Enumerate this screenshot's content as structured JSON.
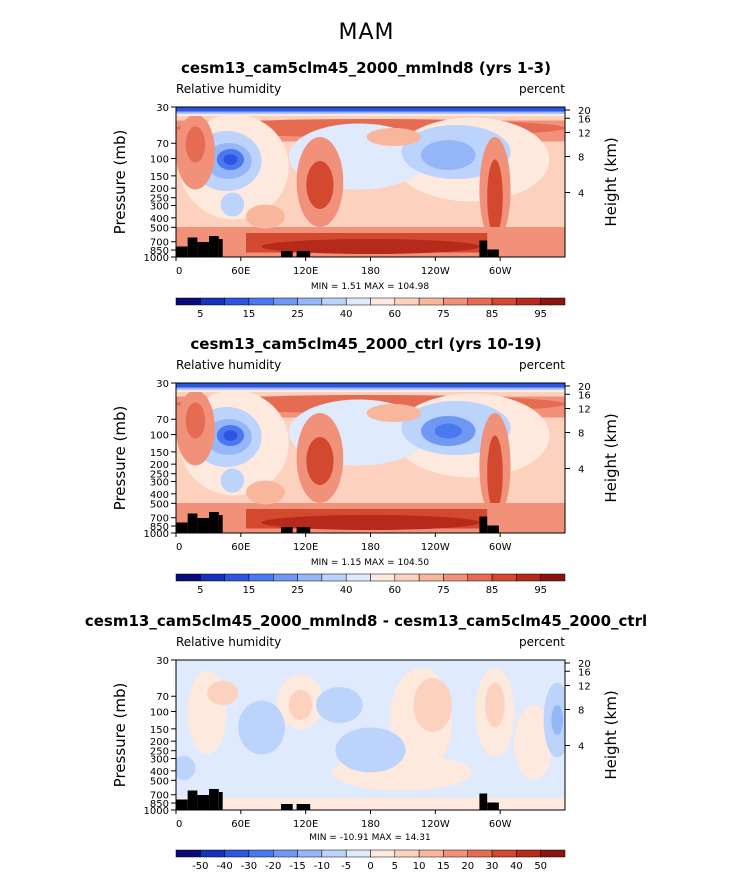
{
  "page_title": "MAM",
  "chart_data": [
    {
      "type": "heatmap",
      "title": "cesm13_cam5clm45_2000_mmlnd8 (yrs 1-3)",
      "left_label": "Relative humidity",
      "right_label": "percent",
      "ylabel": "Pressure (mb)",
      "y2label": "Height (km)",
      "y_ticks": [
        "30",
        "70",
        "100",
        "150",
        "200",
        "250",
        "300",
        "400",
        "500",
        "700",
        "850",
        "1000"
      ],
      "y2_ticks": [
        "20",
        "16",
        "12",
        "8",
        "4"
      ],
      "x_ticks": [
        "0",
        "60E",
        "120E",
        "180",
        "120W",
        "60W"
      ],
      "stats": "MIN =    1.51   MAX = 104.98",
      "colorbar_labels": [
        "5",
        "15",
        "25",
        "40",
        "60",
        "75",
        "85",
        "95"
      ],
      "colors": [
        "#0a0a7a",
        "#1533b8",
        "#2d55e0",
        "#4a78ee",
        "#6f97f4",
        "#95b6f8",
        "#bcd3fb",
        "#dfeafd",
        "#fde9de",
        "#fcd2bf",
        "#f8b79c",
        "#f1917a",
        "#e56c52",
        "#d3492f",
        "#b52a1a",
        "#8b150e"
      ]
    },
    {
      "type": "heatmap",
      "title": "cesm13_cam5clm45_2000_ctrl (yrs 10-19)",
      "left_label": "Relative humidity",
      "right_label": "percent",
      "ylabel": "Pressure (mb)",
      "y2label": "Height (km)",
      "y_ticks": [
        "30",
        "70",
        "100",
        "150",
        "200",
        "250",
        "300",
        "400",
        "500",
        "700",
        "850",
        "1000"
      ],
      "y2_ticks": [
        "20",
        "16",
        "12",
        "8",
        "4"
      ],
      "x_ticks": [
        "0",
        "60E",
        "120E",
        "180",
        "120W",
        "60W"
      ],
      "stats": "MIN =    1.15   MAX = 104.50",
      "colorbar_labels": [
        "5",
        "15",
        "25",
        "40",
        "60",
        "75",
        "85",
        "95"
      ],
      "colors": [
        "#0a0a7a",
        "#1533b8",
        "#2d55e0",
        "#4a78ee",
        "#6f97f4",
        "#95b6f8",
        "#bcd3fb",
        "#dfeafd",
        "#fde9de",
        "#fcd2bf",
        "#f8b79c",
        "#f1917a",
        "#e56c52",
        "#d3492f",
        "#b52a1a",
        "#8b150e"
      ]
    },
    {
      "type": "heatmap",
      "title": "cesm13_cam5clm45_2000_mmlnd8 - cesm13_cam5clm45_2000_ctrl",
      "left_label": "Relative humidity",
      "right_label": "percent",
      "ylabel": "Pressure (mb)",
      "y2label": "Height (km)",
      "y_ticks": [
        "30",
        "70",
        "100",
        "150",
        "200",
        "250",
        "300",
        "400",
        "500",
        "700",
        "850",
        "1000"
      ],
      "y2_ticks": [
        "20",
        "16",
        "12",
        "8",
        "4"
      ],
      "x_ticks": [
        "0",
        "60E",
        "120E",
        "180",
        "120W",
        "60W"
      ],
      "stats": "MIN =  -10.91   MAX =  14.31",
      "colorbar_labels": [
        "-50",
        "-40",
        "-30",
        "-20",
        "-15",
        "-10",
        "-5",
        "0",
        "5",
        "10",
        "15",
        "20",
        "30",
        "40",
        "50"
      ],
      "colors": [
        "#0a0a7a",
        "#1533b8",
        "#2d55e0",
        "#4a78ee",
        "#6f97f4",
        "#95b6f8",
        "#bcd3fb",
        "#dfeafd",
        "#fde9de",
        "#fcd2bf",
        "#f8b79c",
        "#f1917a",
        "#e56c52",
        "#d3492f",
        "#b52a1a",
        "#8b150e"
      ]
    }
  ]
}
